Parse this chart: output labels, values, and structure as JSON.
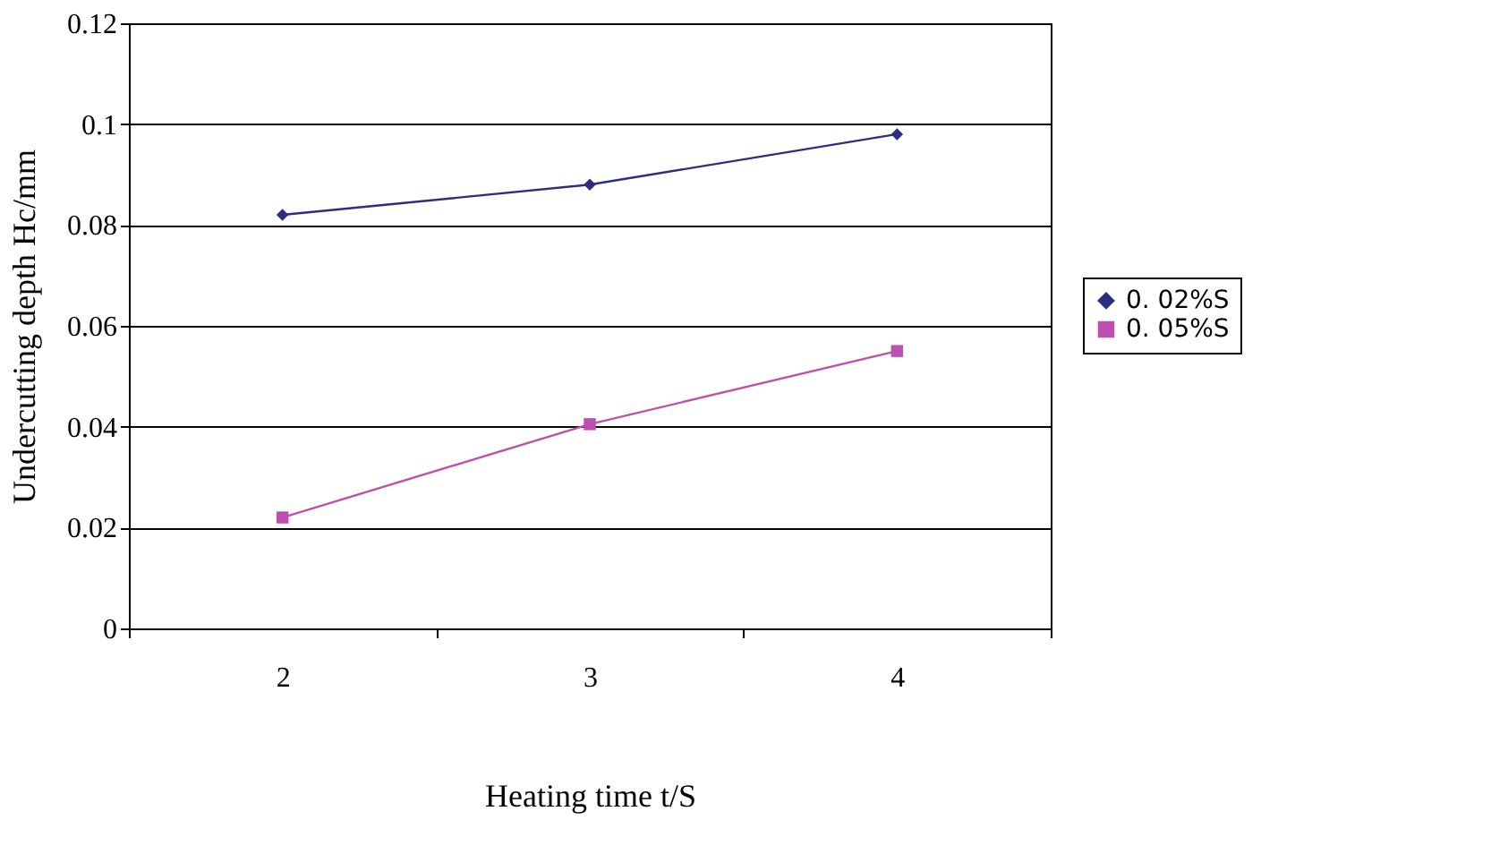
{
  "chart_data": {
    "type": "line",
    "xlabel": "Heating time t/S",
    "ylabel": "Undercutting depth  Hc/mm",
    "categories": [
      "2",
      "3",
      "4"
    ],
    "series": [
      {
        "name": "0. 02%S",
        "color": "#2e2e80",
        "marker": "diamond",
        "values": [
          0.082,
          0.088,
          0.098
        ]
      },
      {
        "name": "0. 05%S",
        "color": "#bf4fae",
        "marker": "square",
        "values": [
          0.022,
          0.0405,
          0.055
        ]
      }
    ],
    "ylim": [
      0,
      0.12
    ],
    "yticks": [
      0,
      0.02,
      0.04,
      0.06,
      0.08,
      0.1,
      0.12
    ],
    "grid": "y",
    "legend": "right",
    "line_style": "solid"
  }
}
